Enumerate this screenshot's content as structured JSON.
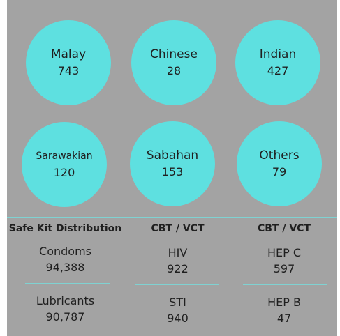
{
  "circles": [
    {
      "label": "Malay",
      "value": "743"
    },
    {
      "label": "Chinese",
      "value": "28"
    },
    {
      "label": "Indian",
      "value": "427"
    },
    {
      "label": "Sarawakian",
      "value": "120"
    },
    {
      "label": "Sabahan",
      "value": "153"
    },
    {
      "label": "Others",
      "value": "79"
    }
  ],
  "table": {
    "headers": [
      "Safe Kit Distribution",
      "CBT / VCT",
      "CBT / VCT"
    ],
    "rows": [
      [
        {
          "label": "Condoms",
          "value": "94,388"
        },
        {
          "label": "HIV",
          "value": "922"
        },
        {
          "label": "HEP C",
          "value": "597"
        }
      ],
      [
        {
          "label": "Lubricants",
          "value": "90,787"
        },
        {
          "label": "STI",
          "value": "940"
        },
        {
          "label": "HEP B",
          "value": "47"
        }
      ]
    ]
  },
  "colors": {
    "background": "#a3a3a3",
    "circle": "#5ee0e0",
    "divider": "#7fd2d2"
  }
}
